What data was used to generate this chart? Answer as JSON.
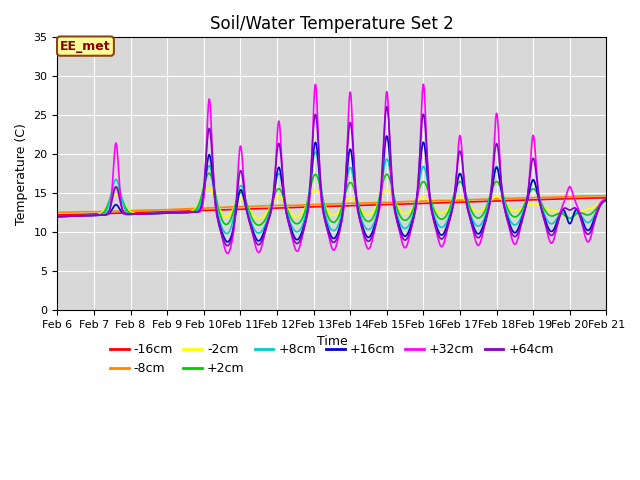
{
  "title": "Soil/Water Temperature Set 2",
  "xlabel": "Time",
  "ylabel": "Temperature (C)",
  "ylim": [
    0,
    35
  ],
  "xlim": [
    0,
    15
  ],
  "x_tick_labels": [
    "Feb 6",
    "Feb 7",
    "Feb 8",
    "Feb 9",
    "Feb 10",
    "Feb 11",
    "Feb 12",
    "Feb 13",
    "Feb 14",
    "Feb 15",
    "Feb 16",
    "Feb 17",
    "Feb 18",
    "Feb 19",
    "Feb 20",
    "Feb 21"
  ],
  "annotation_text": "EE_met",
  "annotation_bg": "#ffff99",
  "annotation_border": "#8b4513",
  "background_color": "#d8d8d8",
  "series": [
    {
      "label": "-16cm",
      "color": "#ff0000",
      "linewidth": 1.2
    },
    {
      "label": "-8cm",
      "color": "#ff8800",
      "linewidth": 1.2
    },
    {
      "label": "-2cm",
      "color": "#ffff00",
      "linewidth": 1.2
    },
    {
      "label": "+2cm",
      "color": "#00cc00",
      "linewidth": 1.2
    },
    {
      "label": "+8cm",
      "color": "#00cccc",
      "linewidth": 1.2
    },
    {
      "label": "+16cm",
      "color": "#0000cc",
      "linewidth": 1.2
    },
    {
      "label": "+32cm",
      "color": "#ff00ff",
      "linewidth": 1.2
    },
    {
      "label": "+64cm",
      "color": "#8800cc",
      "linewidth": 1.2
    }
  ],
  "title_fontsize": 12,
  "tick_fontsize": 8,
  "label_fontsize": 9,
  "legend_fontsize": 9
}
